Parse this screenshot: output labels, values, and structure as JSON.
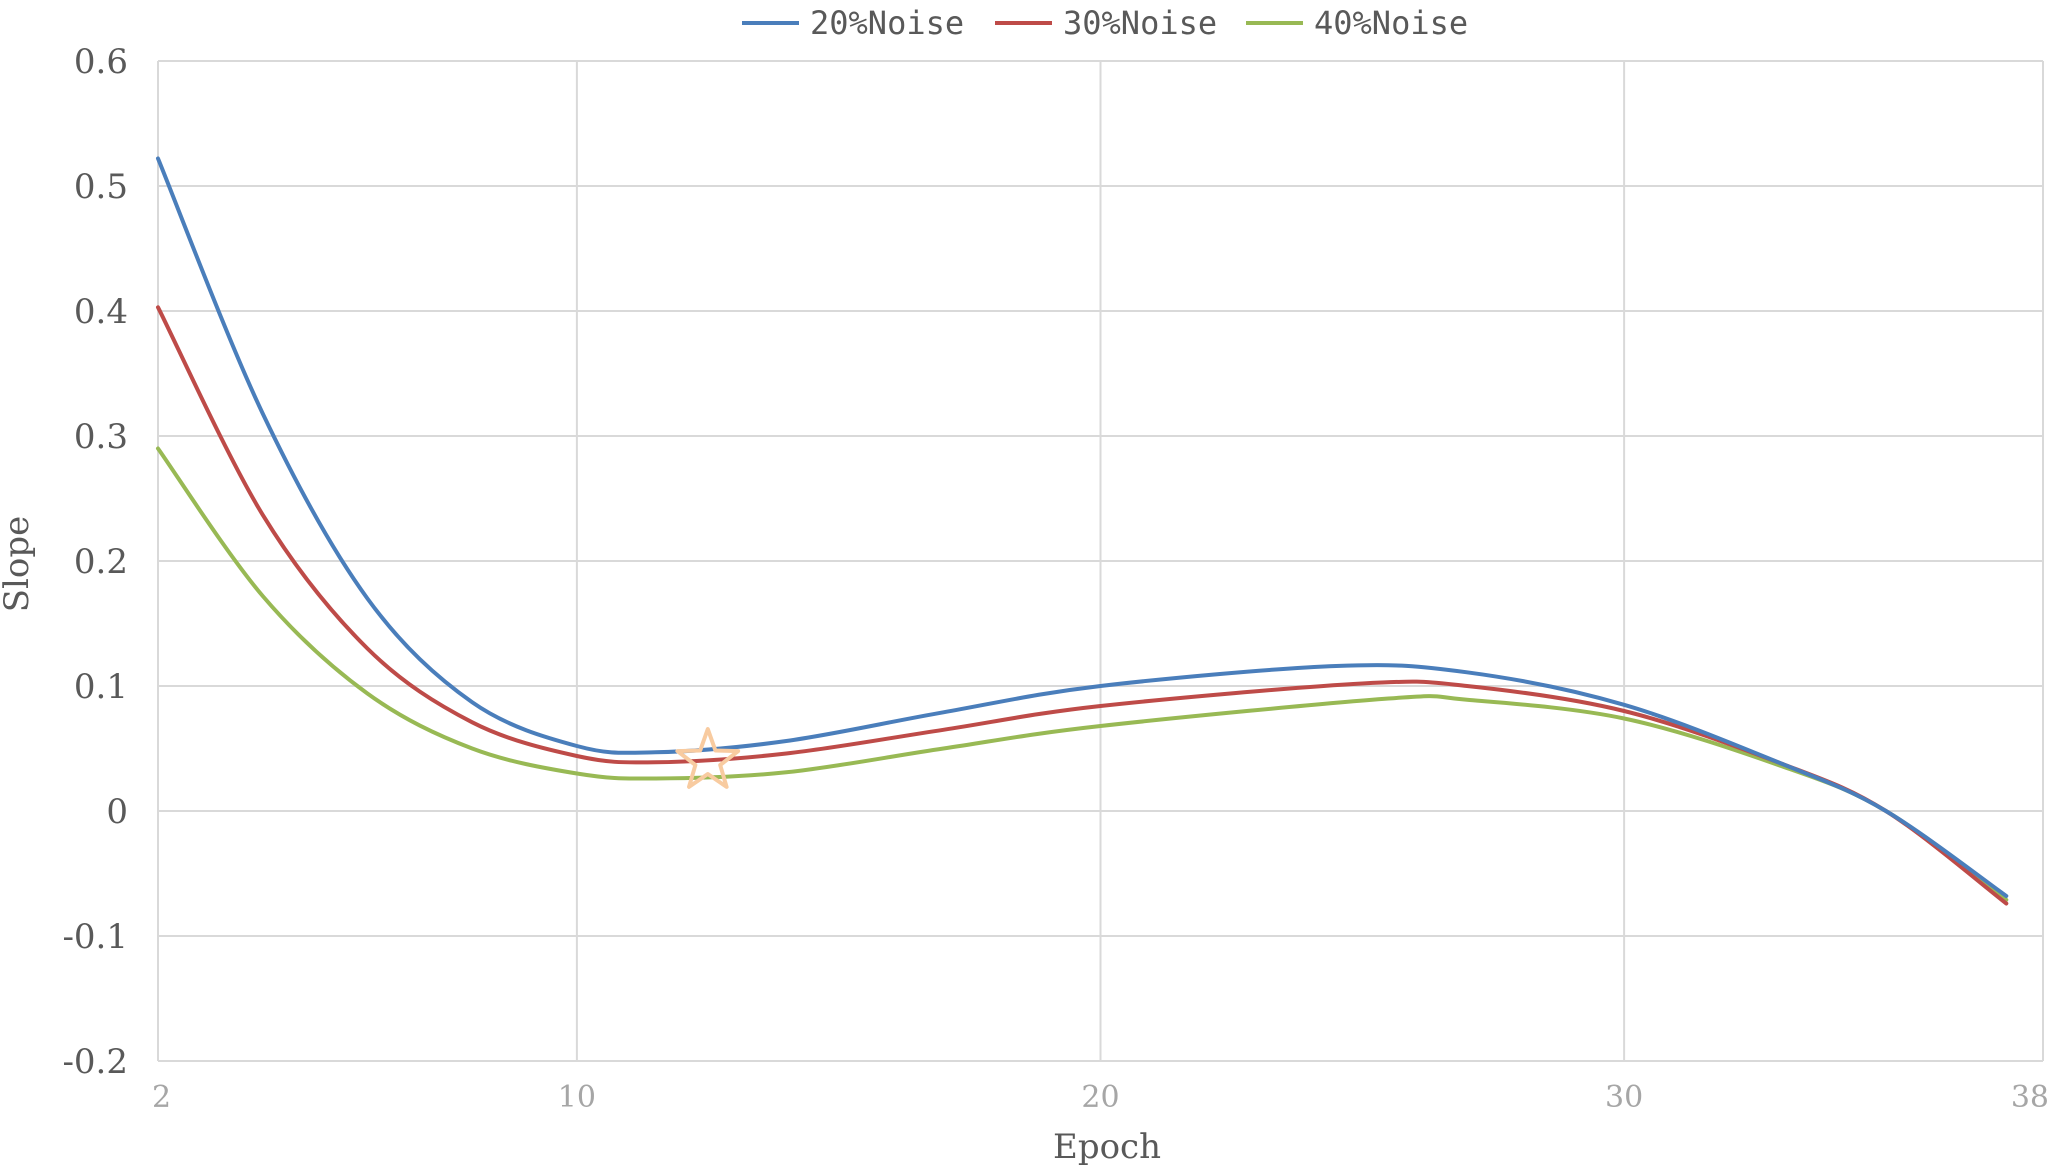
{
  "chart_data": {
    "type": "line",
    "title": "",
    "xlabel": "Epoch",
    "ylabel": "Slope",
    "xlim": [
      2,
      38
    ],
    "ylim": [
      -0.2,
      0.6
    ],
    "xticks": [
      2,
      10,
      20,
      30,
      38
    ],
    "yticks": [
      -0.2,
      -0.1,
      0,
      0.1,
      0.2,
      0.3,
      0.4,
      0.5,
      0.6
    ],
    "ytick_labels": [
      "-0.2",
      "-0.1",
      "0",
      "0.1",
      "0.2",
      "0.3",
      "0.4",
      "0.5",
      "0.6"
    ],
    "grid": true,
    "legend": "top",
    "series": [
      {
        "name": "20%Noise",
        "color": "#4a7ebb",
        "x": [
          2,
          4,
          6,
          8,
          10,
          11.5,
          14,
          17,
          20,
          24.5,
          27,
          30,
          33,
          35,
          37.3
        ],
        "y": [
          0.522,
          0.318,
          0.17,
          0.087,
          0.052,
          0.047,
          0.056,
          0.079,
          0.1,
          0.116,
          0.111,
          0.085,
          0.038,
          0.0,
          -0.068
        ]
      },
      {
        "name": "30%Noise",
        "color": "#be4b48",
        "x": [
          2,
          4,
          6,
          8,
          10,
          11.5,
          14,
          17,
          20,
          25,
          27,
          30,
          33,
          35,
          37.3
        ],
        "y": [
          0.403,
          0.237,
          0.13,
          0.071,
          0.044,
          0.039,
          0.046,
          0.065,
          0.084,
          0.102,
          0.1,
          0.08,
          0.038,
          0.0,
          -0.074
        ]
      },
      {
        "name": "40%Noise",
        "color": "#98b954",
        "x": [
          2,
          4,
          6,
          8,
          10,
          11.5,
          14,
          17,
          20,
          25.5,
          27,
          30,
          33,
          35,
          37.3
        ],
        "y": [
          0.29,
          0.172,
          0.094,
          0.05,
          0.03,
          0.026,
          0.031,
          0.05,
          0.068,
          0.09,
          0.089,
          0.074,
          0.036,
          0.0,
          -0.071
        ]
      }
    ],
    "annotations": [
      {
        "type": "star",
        "x": 12.5,
        "y": 0.04,
        "color": "#f8cba0"
      }
    ]
  }
}
